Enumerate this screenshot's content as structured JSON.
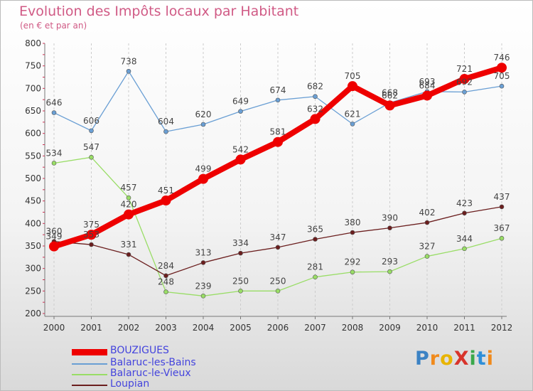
{
  "title": "Evolution des Impôts locaux par Habitant",
  "subtitle": "(en € et par an)",
  "logo_text": "ProXiti",
  "chart_data": {
    "type": "line",
    "x": [
      "2000",
      "2001",
      "2002",
      "2003",
      "2004",
      "2005",
      "2006",
      "2007",
      "2008",
      "2009",
      "2010",
      "2011",
      "2012"
    ],
    "ylim": [
      200,
      800
    ],
    "yticks": [
      200,
      250,
      300,
      350,
      400,
      450,
      500,
      550,
      600,
      650,
      700,
      750,
      800
    ],
    "grid": "vertical dashed",
    "legend_position": "bottom-left",
    "series": [
      {
        "name": "BOUZIGUES",
        "color": "#ee0000",
        "values": [
          349,
          375,
          420,
          451,
          499,
          542,
          581,
          632,
          705,
          662,
          684,
          721,
          746
        ]
      },
      {
        "name": "Balaruc-les-Bains",
        "color": "#6a9fd4",
        "values": [
          646,
          606,
          738,
          604,
          620,
          649,
          674,
          682,
          621,
          668,
          693,
          692,
          705
        ]
      },
      {
        "name": "Balaruc-le-Vieux",
        "color": "#99dd66",
        "values": [
          534,
          547,
          457,
          248,
          239,
          250,
          250,
          281,
          292,
          293,
          327,
          344,
          367
        ]
      },
      {
        "name": "Loupian",
        "color": "#6b1e1e",
        "values": [
          360,
          353,
          331,
          284,
          313,
          334,
          347,
          365,
          380,
          390,
          402,
          423,
          437
        ]
      }
    ]
  }
}
